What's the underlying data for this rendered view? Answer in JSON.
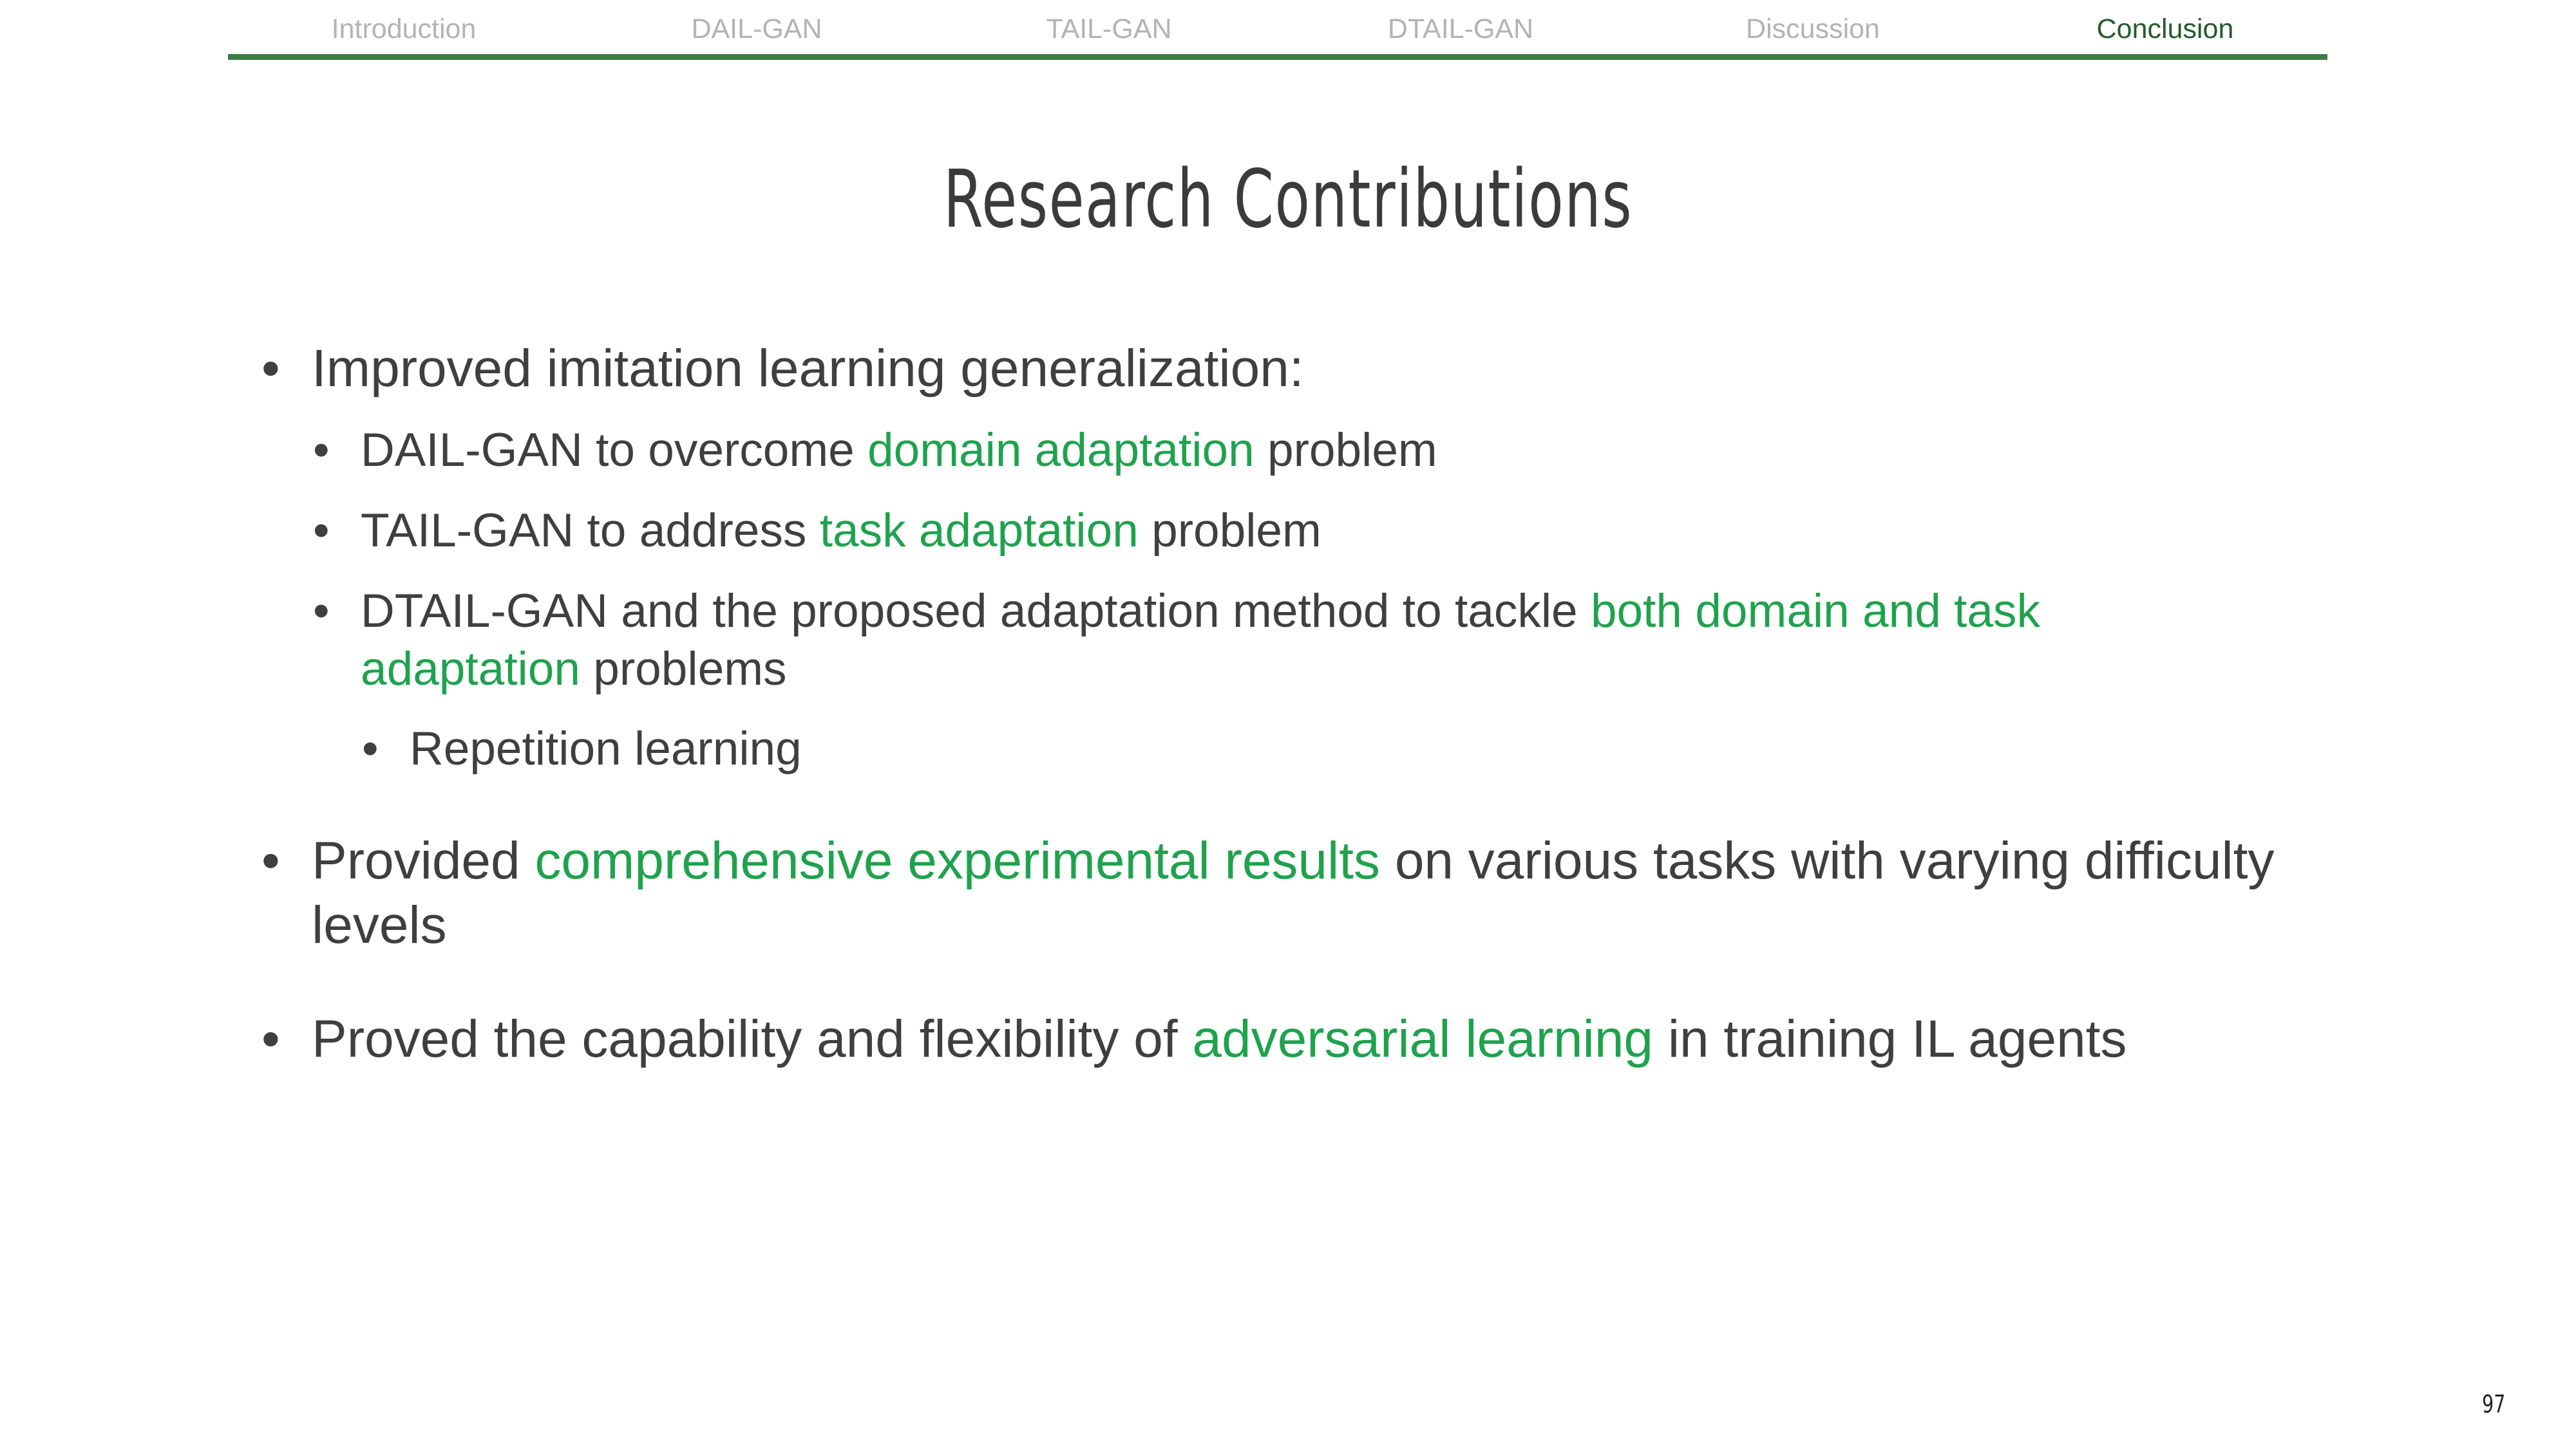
{
  "nav": {
    "items": [
      {
        "label": "Introduction",
        "active": false
      },
      {
        "label": "DAIL-GAN",
        "active": false
      },
      {
        "label": "TAIL-GAN",
        "active": false
      },
      {
        "label": "DTAIL-GAN",
        "active": false
      },
      {
        "label": "Discussion",
        "active": false
      },
      {
        "label": "Conclusion",
        "active": true
      }
    ],
    "rule_color": "#3c7d44",
    "active_color": "#245b2a"
  },
  "title": "Research Contributions",
  "highlight_color": "#1fa24d",
  "bullets": {
    "b1": {
      "text": "Improved imitation learning generalization:",
      "sub1": {
        "pre": "DAIL-GAN to overcome ",
        "hl": "domain adaptation",
        "post": " problem"
      },
      "sub2": {
        "pre": "TAIL-GAN to address ",
        "hl": "task adaptation",
        "post": " problem"
      },
      "sub3": {
        "line1_pre": "DTAIL-GAN and the proposed adaptation method to tackle ",
        "line1_hl": "both domain and task",
        "line2_hl": "adaptation",
        "line2_post": " problems",
        "sub1": "Repetition learning"
      }
    },
    "b2": {
      "pre": "Provided ",
      "hl": "comprehensive experimental results",
      "post": " on various tasks with varying difficulty",
      "line2": "levels"
    },
    "b3": {
      "pre": "Proved the capability and flexibility of ",
      "hl": "adversarial learning",
      "post": " in training IL agents"
    }
  },
  "page_number": "97"
}
